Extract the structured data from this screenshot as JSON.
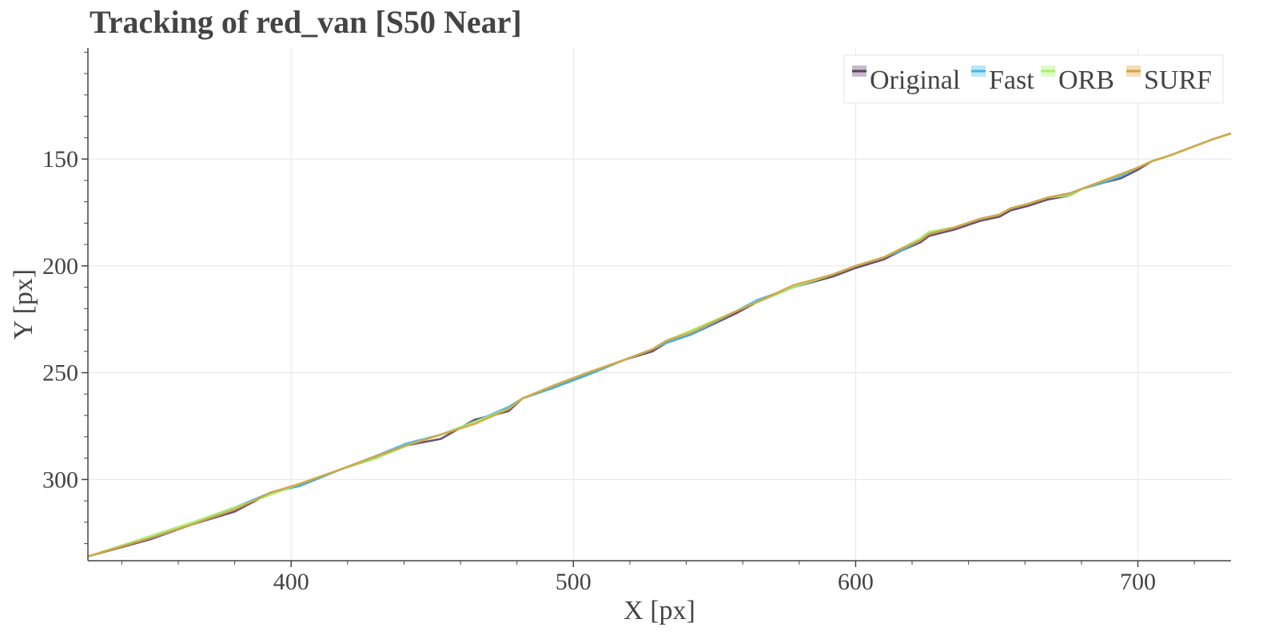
{
  "chart_data": {
    "type": "line",
    "title": "Tracking of red_van [S50 Near]",
    "xlabel": "X [px]",
    "ylabel": "Y [px]",
    "xlim": [
      328,
      733
    ],
    "ylim": [
      338,
      98
    ],
    "y_inverted": true,
    "grid": true,
    "legend_position": "top-right",
    "x_ticks": [
      400,
      500,
      600,
      700
    ],
    "y_ticks": [
      150,
      200,
      250,
      300
    ],
    "series": [
      {
        "name": "Original",
        "color": "#5b3f63",
        "points": [
          [
            328,
            336
          ],
          [
            350,
            328
          ],
          [
            365,
            321
          ],
          [
            380,
            315
          ],
          [
            393,
            306
          ],
          [
            403,
            303
          ],
          [
            418,
            295
          ],
          [
            430,
            290
          ],
          [
            441,
            284
          ],
          [
            453,
            281
          ],
          [
            465,
            272
          ],
          [
            477,
            268
          ],
          [
            482,
            262
          ],
          [
            493,
            257
          ],
          [
            505,
            251
          ],
          [
            518,
            244
          ],
          [
            528,
            240
          ],
          [
            533,
            236
          ],
          [
            542,
            232
          ],
          [
            558,
            222
          ],
          [
            565,
            217
          ],
          [
            578,
            210
          ],
          [
            592,
            205
          ],
          [
            600,
            201
          ],
          [
            610,
            197
          ],
          [
            616,
            193
          ],
          [
            623,
            189
          ],
          [
            626,
            186
          ],
          [
            635,
            183
          ],
          [
            644,
            179
          ],
          [
            651,
            177
          ],
          [
            655,
            174
          ],
          [
            661,
            172
          ],
          [
            668,
            169
          ],
          [
            676,
            167
          ],
          [
            680,
            164
          ],
          [
            688,
            161
          ],
          [
            694,
            159
          ],
          [
            700,
            155
          ],
          [
            705,
            151
          ],
          [
            712,
            148
          ],
          [
            718,
            145
          ],
          [
            726,
            141
          ],
          [
            733,
            138
          ]
        ]
      },
      {
        "name": "Fast",
        "color": "#40b8e8",
        "points": [
          [
            328,
            336
          ],
          [
            351,
            327
          ],
          [
            365,
            321
          ],
          [
            380,
            313
          ],
          [
            393,
            306
          ],
          [
            403,
            303
          ],
          [
            418,
            295
          ],
          [
            430,
            289
          ],
          [
            441,
            283
          ],
          [
            453,
            279
          ],
          [
            465,
            273
          ],
          [
            477,
            266
          ],
          [
            482,
            262
          ],
          [
            493,
            257
          ],
          [
            505,
            251
          ],
          [
            518,
            244
          ],
          [
            528,
            239
          ],
          [
            533,
            236
          ],
          [
            542,
            232
          ],
          [
            558,
            221
          ],
          [
            565,
            216
          ],
          [
            578,
            210
          ],
          [
            592,
            204
          ],
          [
            600,
            200
          ],
          [
            610,
            196
          ],
          [
            616,
            193
          ],
          [
            623,
            188
          ],
          [
            626,
            185
          ],
          [
            635,
            182
          ],
          [
            644,
            178
          ],
          [
            651,
            176
          ],
          [
            655,
            173
          ],
          [
            661,
            171
          ],
          [
            668,
            168
          ],
          [
            676,
            166
          ],
          [
            680,
            164
          ],
          [
            688,
            161
          ],
          [
            694,
            158
          ],
          [
            700,
            154
          ],
          [
            705,
            151
          ],
          [
            712,
            148
          ],
          [
            718,
            145
          ],
          [
            726,
            141
          ],
          [
            733,
            138
          ]
        ]
      },
      {
        "name": "ORB",
        "color": "#a6f066",
        "points": [
          [
            328,
            336
          ],
          [
            351,
            326
          ],
          [
            365,
            320
          ],
          [
            380,
            313
          ],
          [
            393,
            307
          ],
          [
            403,
            302
          ],
          [
            418,
            295
          ],
          [
            430,
            290
          ],
          [
            441,
            284
          ],
          [
            453,
            279
          ],
          [
            465,
            273
          ],
          [
            477,
            267
          ],
          [
            482,
            262
          ],
          [
            493,
            256
          ],
          [
            505,
            250
          ],
          [
            518,
            244
          ],
          [
            528,
            239
          ],
          [
            533,
            235
          ],
          [
            542,
            230
          ],
          [
            558,
            221
          ],
          [
            565,
            217
          ],
          [
            578,
            210
          ],
          [
            592,
            204
          ],
          [
            600,
            200
          ],
          [
            610,
            196
          ],
          [
            616,
            192
          ],
          [
            623,
            187
          ],
          [
            626,
            184
          ],
          [
            635,
            182
          ],
          [
            644,
            178
          ],
          [
            651,
            176
          ],
          [
            655,
            173
          ],
          [
            661,
            171
          ],
          [
            668,
            168
          ],
          [
            676,
            167
          ],
          [
            680,
            164
          ],
          [
            688,
            160
          ],
          [
            694,
            157
          ],
          [
            700,
            154
          ],
          [
            705,
            151
          ],
          [
            712,
            148
          ],
          [
            718,
            145
          ],
          [
            726,
            141
          ],
          [
            733,
            138
          ]
        ]
      },
      {
        "name": "SURF",
        "color": "#d9a040",
        "points": [
          [
            328,
            336
          ],
          [
            351,
            327
          ],
          [
            365,
            321
          ],
          [
            380,
            314
          ],
          [
            393,
            306
          ],
          [
            403,
            302
          ],
          [
            418,
            295
          ],
          [
            430,
            289
          ],
          [
            441,
            284
          ],
          [
            453,
            279
          ],
          [
            465,
            274
          ],
          [
            477,
            267
          ],
          [
            482,
            262
          ],
          [
            493,
            256
          ],
          [
            505,
            250
          ],
          [
            518,
            244
          ],
          [
            528,
            239
          ],
          [
            533,
            235
          ],
          [
            542,
            231
          ],
          [
            558,
            221
          ],
          [
            565,
            217
          ],
          [
            578,
            209
          ],
          [
            592,
            204
          ],
          [
            600,
            200
          ],
          [
            610,
            196
          ],
          [
            616,
            192
          ],
          [
            623,
            188
          ],
          [
            626,
            185
          ],
          [
            635,
            182
          ],
          [
            644,
            178
          ],
          [
            651,
            176
          ],
          [
            655,
            173
          ],
          [
            661,
            171
          ],
          [
            668,
            168
          ],
          [
            676,
            166
          ],
          [
            680,
            164
          ],
          [
            688,
            160
          ],
          [
            694,
            157
          ],
          [
            700,
            154
          ],
          [
            705,
            151
          ],
          [
            712,
            148
          ],
          [
            718,
            145
          ],
          [
            726,
            141
          ],
          [
            733,
            138
          ]
        ]
      }
    ]
  }
}
